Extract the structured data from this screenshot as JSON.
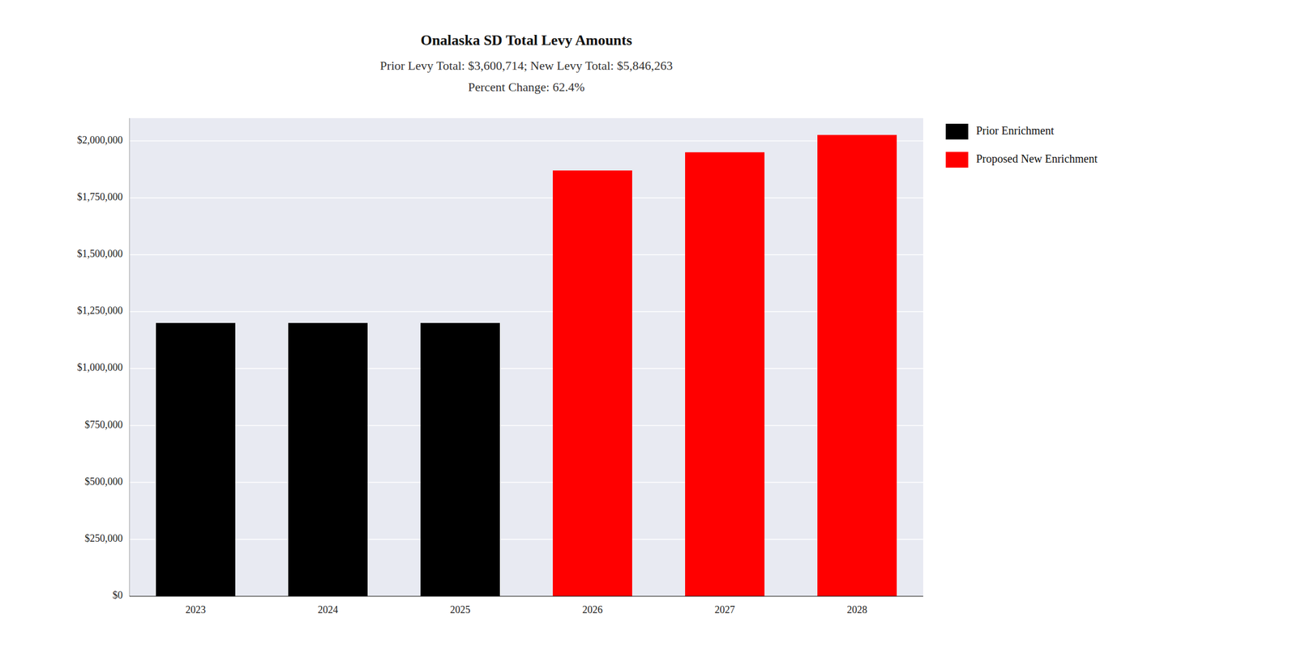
{
  "chart_data": {
    "type": "bar",
    "title": "Onalaska SD Total Levy Amounts",
    "subtitle": [
      "Prior Levy Total:  $3,600,714; New Levy Total: $5,846,263",
      "Percent Change: 62.4%"
    ],
    "categories": [
      "2023",
      "2024",
      "2025",
      "2026",
      "2027",
      "2028"
    ],
    "series": [
      {
        "name": "Prior Enrichment",
        "color": "#000000",
        "values": [
          1200238,
          1200238,
          1200238,
          null,
          null,
          null
        ]
      },
      {
        "name": "Proposed New Enrichment",
        "color": "#ff0000",
        "values": [
          null,
          null,
          null,
          1870000,
          1950000,
          2026263
        ]
      }
    ],
    "stacked": true,
    "ylim": [
      0,
      2100000
    ],
    "yticks": [
      {
        "value": 0,
        "label": "$0"
      },
      {
        "value": 250000,
        "label": "$250,000"
      },
      {
        "value": 500000,
        "label": "$500,000"
      },
      {
        "value": 750000,
        "label": "$750,000"
      },
      {
        "value": 1000000,
        "label": "$1,000,000"
      },
      {
        "value": 1250000,
        "label": "$1,250,000"
      },
      {
        "value": 1500000,
        "label": "$1,500,000"
      },
      {
        "value": 1750000,
        "label": "$1,750,000"
      },
      {
        "value": 2000000,
        "label": "$2,000,000"
      }
    ],
    "grid": true,
    "legend": "upper right"
  }
}
